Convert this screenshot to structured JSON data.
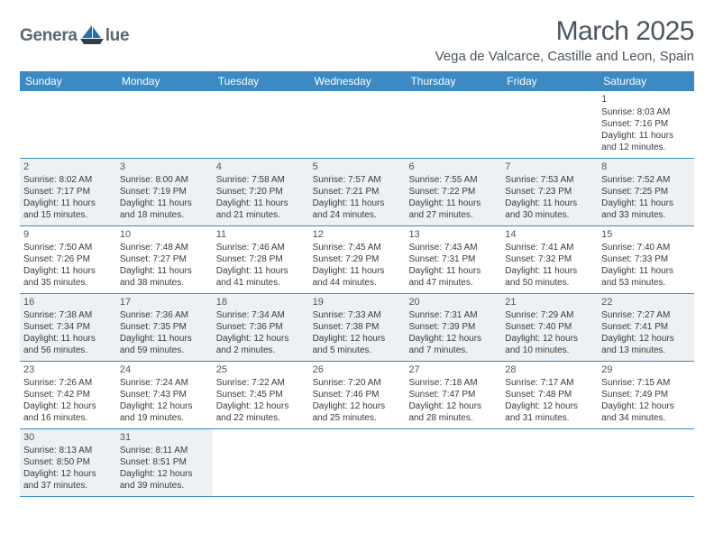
{
  "logo": {
    "text_left": "Genera",
    "text_right": "lue",
    "sail_color": "#1f6fb2",
    "hull_color": "#2f3e4d"
  },
  "title": "March 2025",
  "location": "Vega de Valcarce, Castille and Leon, Spain",
  "weekdays": [
    "Sunday",
    "Monday",
    "Tuesday",
    "Wednesday",
    "Thursday",
    "Friday",
    "Saturday"
  ],
  "header_bg": "#3b8ac4",
  "alt_bg": "#eef1f3",
  "border_color": "#3b8ac4",
  "weeks": [
    [
      null,
      null,
      null,
      null,
      null,
      null,
      {
        "n": "1",
        "sr": "8:03 AM",
        "ss": "7:16 PM",
        "dl": "11 hours and 12 minutes."
      }
    ],
    [
      {
        "n": "2",
        "sr": "8:02 AM",
        "ss": "7:17 PM",
        "dl": "11 hours and 15 minutes."
      },
      {
        "n": "3",
        "sr": "8:00 AM",
        "ss": "7:19 PM",
        "dl": "11 hours and 18 minutes."
      },
      {
        "n": "4",
        "sr": "7:58 AM",
        "ss": "7:20 PM",
        "dl": "11 hours and 21 minutes."
      },
      {
        "n": "5",
        "sr": "7:57 AM",
        "ss": "7:21 PM",
        "dl": "11 hours and 24 minutes."
      },
      {
        "n": "6",
        "sr": "7:55 AM",
        "ss": "7:22 PM",
        "dl": "11 hours and 27 minutes."
      },
      {
        "n": "7",
        "sr": "7:53 AM",
        "ss": "7:23 PM",
        "dl": "11 hours and 30 minutes."
      },
      {
        "n": "8",
        "sr": "7:52 AM",
        "ss": "7:25 PM",
        "dl": "11 hours and 33 minutes."
      }
    ],
    [
      {
        "n": "9",
        "sr": "7:50 AM",
        "ss": "7:26 PM",
        "dl": "11 hours and 35 minutes."
      },
      {
        "n": "10",
        "sr": "7:48 AM",
        "ss": "7:27 PM",
        "dl": "11 hours and 38 minutes."
      },
      {
        "n": "11",
        "sr": "7:46 AM",
        "ss": "7:28 PM",
        "dl": "11 hours and 41 minutes."
      },
      {
        "n": "12",
        "sr": "7:45 AM",
        "ss": "7:29 PM",
        "dl": "11 hours and 44 minutes."
      },
      {
        "n": "13",
        "sr": "7:43 AM",
        "ss": "7:31 PM",
        "dl": "11 hours and 47 minutes."
      },
      {
        "n": "14",
        "sr": "7:41 AM",
        "ss": "7:32 PM",
        "dl": "11 hours and 50 minutes."
      },
      {
        "n": "15",
        "sr": "7:40 AM",
        "ss": "7:33 PM",
        "dl": "11 hours and 53 minutes."
      }
    ],
    [
      {
        "n": "16",
        "sr": "7:38 AM",
        "ss": "7:34 PM",
        "dl": "11 hours and 56 minutes."
      },
      {
        "n": "17",
        "sr": "7:36 AM",
        "ss": "7:35 PM",
        "dl": "11 hours and 59 minutes."
      },
      {
        "n": "18",
        "sr": "7:34 AM",
        "ss": "7:36 PM",
        "dl": "12 hours and 2 minutes."
      },
      {
        "n": "19",
        "sr": "7:33 AM",
        "ss": "7:38 PM",
        "dl": "12 hours and 5 minutes."
      },
      {
        "n": "20",
        "sr": "7:31 AM",
        "ss": "7:39 PM",
        "dl": "12 hours and 7 minutes."
      },
      {
        "n": "21",
        "sr": "7:29 AM",
        "ss": "7:40 PM",
        "dl": "12 hours and 10 minutes."
      },
      {
        "n": "22",
        "sr": "7:27 AM",
        "ss": "7:41 PM",
        "dl": "12 hours and 13 minutes."
      }
    ],
    [
      {
        "n": "23",
        "sr": "7:26 AM",
        "ss": "7:42 PM",
        "dl": "12 hours and 16 minutes."
      },
      {
        "n": "24",
        "sr": "7:24 AM",
        "ss": "7:43 PM",
        "dl": "12 hours and 19 minutes."
      },
      {
        "n": "25",
        "sr": "7:22 AM",
        "ss": "7:45 PM",
        "dl": "12 hours and 22 minutes."
      },
      {
        "n": "26",
        "sr": "7:20 AM",
        "ss": "7:46 PM",
        "dl": "12 hours and 25 minutes."
      },
      {
        "n": "27",
        "sr": "7:18 AM",
        "ss": "7:47 PM",
        "dl": "12 hours and 28 minutes."
      },
      {
        "n": "28",
        "sr": "7:17 AM",
        "ss": "7:48 PM",
        "dl": "12 hours and 31 minutes."
      },
      {
        "n": "29",
        "sr": "7:15 AM",
        "ss": "7:49 PM",
        "dl": "12 hours and 34 minutes."
      }
    ],
    [
      {
        "n": "30",
        "sr": "8:13 AM",
        "ss": "8:50 PM",
        "dl": "12 hours and 37 minutes."
      },
      {
        "n": "31",
        "sr": "8:11 AM",
        "ss": "8:51 PM",
        "dl": "12 hours and 39 minutes."
      },
      null,
      null,
      null,
      null,
      null
    ]
  ],
  "labels": {
    "sunrise": "Sunrise: ",
    "sunset": "Sunset: ",
    "daylight": "Daylight: "
  }
}
